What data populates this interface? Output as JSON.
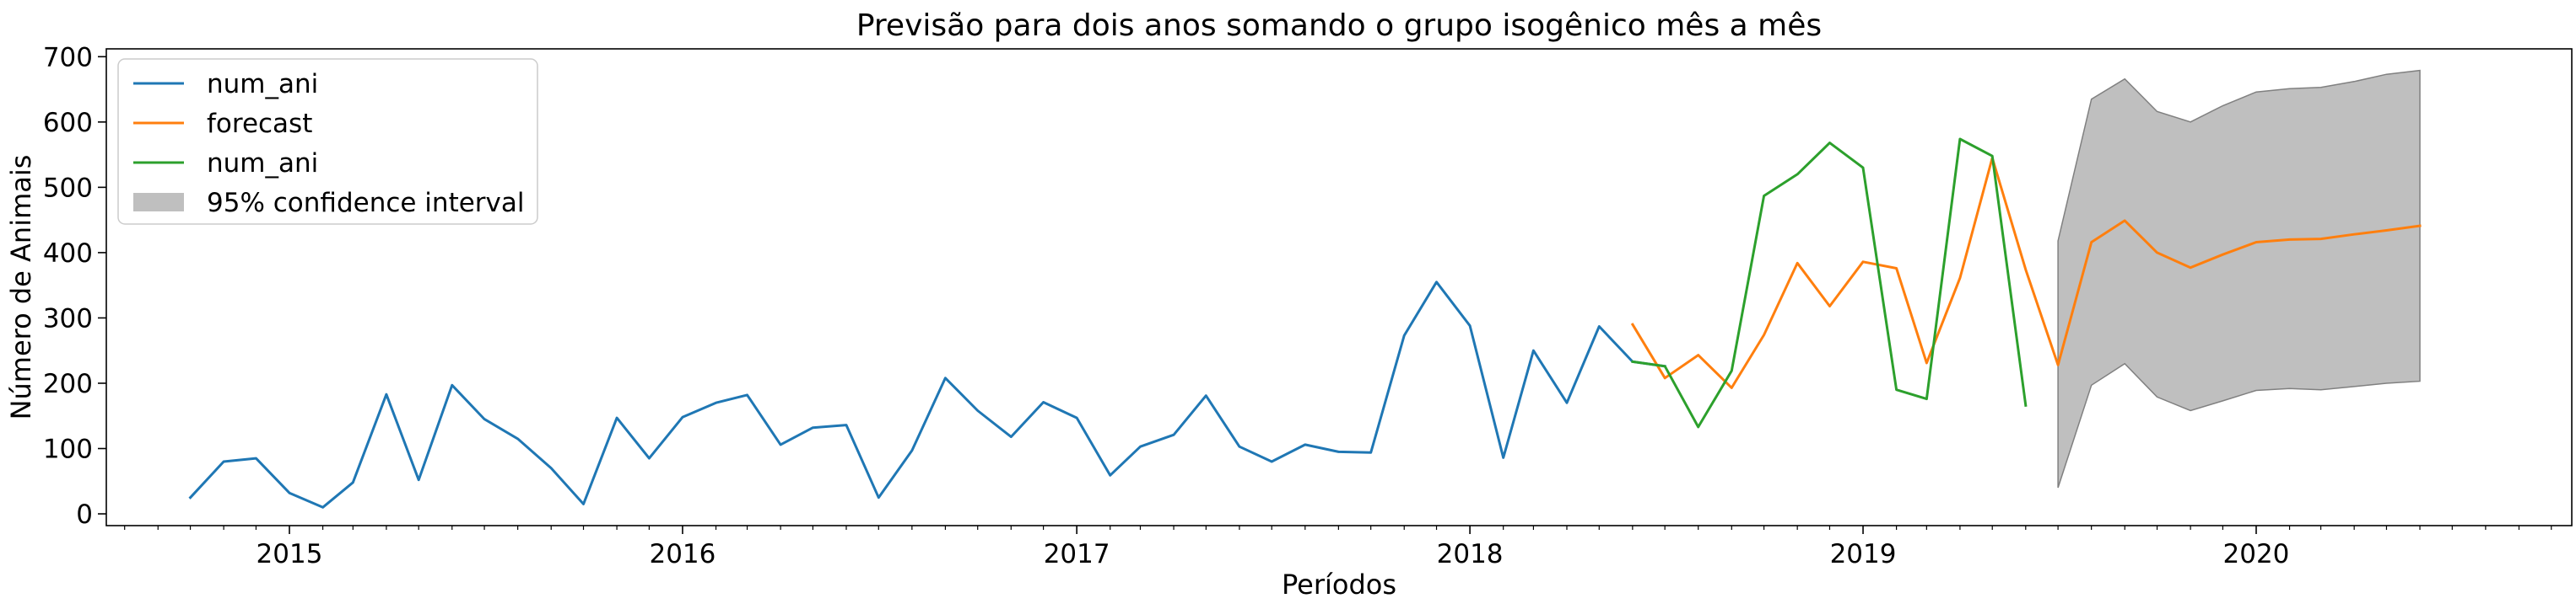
{
  "chart_data": {
    "type": "line",
    "title": "Previsão para dois anos somando o grupo isogênico mês a mês",
    "xlabel": "Períodos",
    "ylabel": "Número de Animais",
    "ylim": [
      -18,
      712
    ],
    "y_ticks": [
      0,
      100,
      200,
      300,
      400,
      500,
      600,
      700
    ],
    "xlim": [
      "2014-07-15",
      "2020-10-20"
    ],
    "x_ticks": [
      "2015",
      "2016",
      "2017",
      "2018",
      "2019",
      "2020"
    ],
    "grid": false,
    "legend_position": "top-left",
    "series": [
      {
        "name": "num_ani",
        "color": "#1f77b4",
        "points": [
          [
            "2014-10",
            25
          ],
          [
            "2014-11",
            80
          ],
          [
            "2014-12",
            85
          ],
          [
            "2015-01",
            32
          ],
          [
            "2015-02",
            10
          ],
          [
            "2015-03",
            48
          ],
          [
            "2015-04",
            183
          ],
          [
            "2015-05",
            52
          ],
          [
            "2015-06",
            197
          ],
          [
            "2015-07",
            145
          ],
          [
            "2015-08",
            115
          ],
          [
            "2015-09",
            70
          ],
          [
            "2015-10",
            15
          ],
          [
            "2015-11",
            147
          ],
          [
            "2015-12",
            85
          ],
          [
            "2016-01",
            148
          ],
          [
            "2016-02",
            170
          ],
          [
            "2016-03",
            182
          ],
          [
            "2016-04",
            106
          ],
          [
            "2016-05",
            132
          ],
          [
            "2016-06",
            136
          ],
          [
            "2016-07",
            25
          ],
          [
            "2016-08",
            97
          ],
          [
            "2016-09",
            208
          ],
          [
            "2016-10",
            158
          ],
          [
            "2016-11",
            118
          ],
          [
            "2016-12",
            171
          ],
          [
            "2017-01",
            147
          ],
          [
            "2017-02",
            59
          ],
          [
            "2017-03",
            103
          ],
          [
            "2017-04",
            121
          ],
          [
            "2017-05",
            181
          ],
          [
            "2017-06",
            103
          ],
          [
            "2017-07",
            80
          ],
          [
            "2017-08",
            106
          ],
          [
            "2017-09",
            95
          ],
          [
            "2017-10",
            94
          ],
          [
            "2017-11",
            273
          ],
          [
            "2017-12",
            355
          ],
          [
            "2018-01",
            288
          ],
          [
            "2018-02",
            86
          ],
          [
            "2018-03",
            250
          ],
          [
            "2018-04",
            170
          ],
          [
            "2018-05",
            287
          ],
          [
            "2018-06",
            233
          ],
          [
            "2018-07",
            226
          ]
        ]
      },
      {
        "name": "forecast",
        "color": "#ff7f0e",
        "points": [
          [
            "2018-06",
            290
          ],
          [
            "2018-07",
            208
          ],
          [
            "2018-08",
            243
          ],
          [
            "2018-09",
            193
          ],
          [
            "2018-10",
            274
          ],
          [
            "2018-11",
            384
          ],
          [
            "2018-12",
            318
          ],
          [
            "2019-01",
            386
          ],
          [
            "2019-02",
            376
          ],
          [
            "2019-03",
            231
          ],
          [
            "2019-04",
            361
          ],
          [
            "2019-05",
            545
          ],
          [
            "2019-06",
            374
          ],
          [
            "2019-07",
            228
          ],
          [
            "2019-08",
            416
          ],
          [
            "2019-09",
            449
          ],
          [
            "2019-10",
            400
          ],
          [
            "2019-11",
            377
          ],
          [
            "2019-12",
            397
          ],
          [
            "2020-01",
            416
          ],
          [
            "2020-02",
            420
          ],
          [
            "2020-03",
            421
          ],
          [
            "2020-04",
            428
          ],
          [
            "2020-05",
            434
          ],
          [
            "2020-06",
            441
          ]
        ]
      },
      {
        "name": "num_ani",
        "color": "#2ca02c",
        "points": [
          [
            "2018-06",
            233
          ],
          [
            "2018-07",
            226
          ],
          [
            "2018-08",
            133
          ],
          [
            "2018-09",
            219
          ],
          [
            "2018-10",
            487
          ],
          [
            "2018-11",
            520
          ],
          [
            "2018-12",
            568
          ],
          [
            "2019-01",
            530
          ],
          [
            "2019-02",
            190
          ],
          [
            "2019-03",
            176
          ],
          [
            "2019-04",
            574
          ],
          [
            "2019-05",
            548
          ],
          [
            "2019-06",
            166
          ]
        ]
      }
    ],
    "confidence_interval": {
      "name": "95% confidence interval",
      "color": "#808080",
      "points": [
        [
          "2019-07",
          40,
          418
        ],
        [
          "2019-08",
          197,
          635
        ],
        [
          "2019-09",
          230,
          666
        ],
        [
          "2019-10",
          179,
          616
        ],
        [
          "2019-11",
          158,
          600
        ],
        [
          "2019-12",
          173,
          625
        ],
        [
          "2020-01",
          189,
          646
        ],
        [
          "2020-02",
          192,
          651
        ],
        [
          "2020-03",
          190,
          653
        ],
        [
          "2020-04",
          195,
          662
        ],
        [
          "2020-05",
          200,
          673
        ],
        [
          "2020-06",
          203,
          679
        ]
      ]
    }
  }
}
